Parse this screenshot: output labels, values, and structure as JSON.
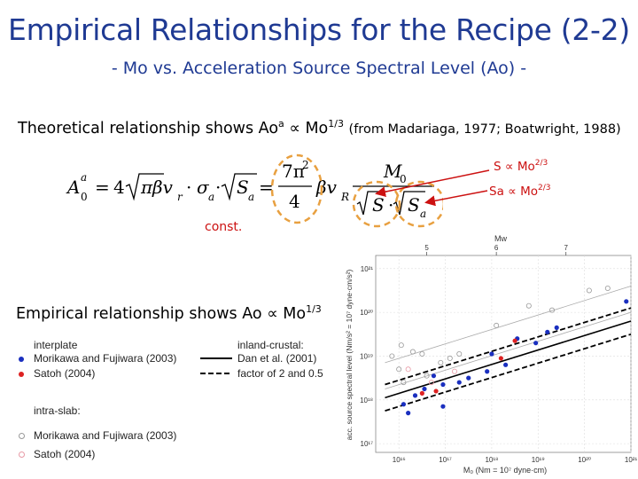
{
  "title": "Empirical Relationships for the Recipe (2-2)",
  "subtitle": "- Mo vs. Acceleration Source Spectral Level (Ao) -",
  "theory": {
    "prefix": "Theoretical relationship shows Ao",
    "superscript_a": "a",
    "propto": "∝",
    "mo": "Mo",
    "exponent": "1/3",
    "reference": "(from Madariaga, 1977; Boatwright, 1988)"
  },
  "equation": {
    "lhs_A": "A",
    "lhs_sup": "a",
    "lhs_sub": "0",
    "equals1": "=",
    "coef": "4",
    "sqrt_pi": "π",
    "beta_vr": "βv",
    "sub_r": "r",
    "dot": "·",
    "sigma": "σ",
    "sub_a": "a",
    "S": "S",
    "equals2": "=",
    "frac_num_7pi": "7π",
    "frac_num_sup2": "2",
    "frac_den": "4",
    "beta_vR": "βv",
    "sub_R": "R",
    "M0_M": "M",
    "M0_sub": "0"
  },
  "const_label": "const.",
  "relations": {
    "s": {
      "label": "S",
      "propto": "∝",
      "mo": "Mo",
      "exp": "2/3"
    },
    "sa": {
      "label": "Sa",
      "propto": "∝",
      "mo": "Mo",
      "exp": "2/3"
    }
  },
  "empirical": {
    "prefix": "Empirical relationship shows Ao",
    "propto": "∝",
    "mo": "Mo",
    "exponent": "1/3"
  },
  "legend": {
    "interplate": "interplate",
    "inland_crustal": "inland-crustal:",
    "morikawa": "Morikawa and Fujiwara (2003)",
    "satoh": "Satoh (2004)",
    "dan": "Dan et al. (2001)",
    "factor": "factor of 2 and 0.5",
    "intraslab": "intra-slab:",
    "morikawa2": "Morikawa and Fujiwara (2003)",
    "satoh2": "Satoh (2004)"
  },
  "colors": {
    "title_blue": "#1f3a93",
    "accent_red": "#cc1111",
    "circle_orange": "#e8a040",
    "interplate_blue": "#1a2fbf",
    "satoh_red": "#dd2222"
  },
  "chart_data": {
    "type": "scatter",
    "xlabel": "M₀ (Nm = 10⁷ dyne·cm)",
    "ylabel": "acc. source spectral level (Nm/s² = 10⁷ dyne·cm/s²)",
    "top_axis_label": "Mw",
    "top_ticks": [
      "5",
      "6",
      "7"
    ],
    "x_tick_labels": [
      "10¹⁶",
      "10¹⁷",
      "10¹⁸",
      "10¹⁹",
      "10²⁰",
      "10²¹"
    ],
    "y_tick_labels": [
      "10²¹",
      "10²⁰",
      "10¹⁹",
      "10¹⁸",
      "10¹⁷"
    ],
    "xlim": [
      15.5,
      21.0
    ],
    "ylim": [
      16.8,
      21.3
    ],
    "series": [
      {
        "name": "interplate: Morikawa and Fujiwara (2003)",
        "marker": "filled-blue",
        "points": [
          [
            16.1,
            17.9
          ],
          [
            16.2,
            17.7
          ],
          [
            16.35,
            18.1
          ],
          [
            16.55,
            18.25
          ],
          [
            16.75,
            18.55
          ],
          [
            16.95,
            17.85
          ],
          [
            16.95,
            18.35
          ],
          [
            17.3,
            18.4
          ],
          [
            17.5,
            18.5
          ],
          [
            17.9,
            18.65
          ],
          [
            18.0,
            19.05
          ],
          [
            18.3,
            18.8
          ],
          [
            18.55,
            19.4
          ],
          [
            18.95,
            19.3
          ],
          [
            19.2,
            19.55
          ],
          [
            19.4,
            19.65
          ],
          [
            20.9,
            20.25
          ]
        ]
      },
      {
        "name": "interplate: Satoh (2004)",
        "marker": "filled-red",
        "points": [
          [
            16.5,
            18.15
          ],
          [
            16.8,
            18.2
          ],
          [
            18.2,
            18.95
          ],
          [
            18.5,
            19.35
          ]
        ]
      },
      {
        "name": "intra-slab: Morikawa and Fujiwara (2003)",
        "marker": "open-grey",
        "points": [
          [
            15.85,
            19.0
          ],
          [
            16.0,
            18.7
          ],
          [
            16.05,
            19.25
          ],
          [
            16.1,
            18.4
          ],
          [
            16.3,
            19.1
          ],
          [
            16.5,
            19.05
          ],
          [
            16.6,
            18.55
          ],
          [
            16.9,
            18.85
          ],
          [
            17.1,
            18.95
          ],
          [
            17.3,
            19.05
          ],
          [
            18.1,
            19.7
          ],
          [
            18.8,
            20.15
          ],
          [
            19.3,
            20.05
          ],
          [
            20.1,
            20.5
          ],
          [
            20.5,
            20.55
          ]
        ]
      },
      {
        "name": "intra-slab: Satoh (2004)",
        "marker": "open-pink",
        "points": [
          [
            16.2,
            18.7
          ],
          [
            16.7,
            18.4
          ],
          [
            17.2,
            18.65
          ]
        ]
      }
    ],
    "lines": [
      {
        "name": "Dan et al. (2001)",
        "style": "solid",
        "points": [
          [
            15.7,
            18.05
          ],
          [
            21.0,
            19.8
          ]
        ]
      },
      {
        "name": "factor of 2 and 0.5 (upper)",
        "style": "dashed",
        "points": [
          [
            15.7,
            18.35
          ],
          [
            21.0,
            20.1
          ]
        ]
      },
      {
        "name": "factor of 2 and 0.5 (lower)",
        "style": "dashed",
        "points": [
          [
            15.7,
            17.75
          ],
          [
            21.0,
            19.5
          ]
        ]
      },
      {
        "name": "intra-slab trend (upper)",
        "style": "thin-grey",
        "points": [
          [
            15.7,
            18.85
          ],
          [
            21.0,
            20.6
          ]
        ]
      },
      {
        "name": "intra-slab trend (lower)",
        "style": "thin-grey",
        "points": [
          [
            15.7,
            18.25
          ],
          [
            21.0,
            20.0
          ]
        ]
      }
    ]
  }
}
